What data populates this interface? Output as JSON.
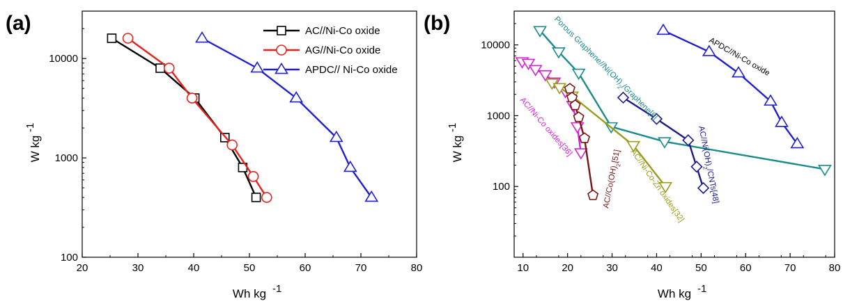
{
  "chart_data": [
    {
      "panel_label": "(a)",
      "type": "line",
      "xlabel": "Wh kg",
      "xlabel_sup": "-1",
      "ylabel": "W kg",
      "ylabel_sup": "-1",
      "xlim": [
        20,
        80
      ],
      "ylim": [
        100,
        30000
      ],
      "y_scale": "log",
      "xticks": [
        20,
        30,
        40,
        50,
        60,
        70,
        80
      ],
      "yticks": [
        100,
        1000,
        10000
      ],
      "legend_position": "top-right",
      "series": [
        {
          "name": "AC//Ni-Co oxide",
          "color": "#000000",
          "marker": "square",
          "x": [
            25.3,
            34.0,
            40.2,
            45.6,
            48.8,
            51.2
          ],
          "y": [
            16000,
            8000,
            4000,
            1600,
            800,
            400
          ]
        },
        {
          "name": "AG//Ni-Co oxide",
          "color": "#e8211d",
          "marker": "circle",
          "x": [
            28.2,
            35.6,
            39.7,
            46.9,
            50.7,
            53.1
          ],
          "y": [
            16000,
            8000,
            4000,
            1350,
            650,
            400
          ]
        },
        {
          "name": "APDC// Ni-Co oxide",
          "color": "#1f1fd1",
          "marker": "triangle-up",
          "x": [
            41.5,
            51.4,
            58.4,
            65.6,
            68.1,
            71.9
          ],
          "y": [
            16000,
            8000,
            4000,
            1600,
            800,
            400
          ]
        }
      ]
    },
    {
      "panel_label": "(b)",
      "type": "line",
      "xlabel": "Wh kg",
      "xlabel_sup": "-1",
      "ylabel": "W kg",
      "ylabel_sup": "-1",
      "xlim": [
        8,
        80
      ],
      "ylim": [
        10,
        30000
      ],
      "y_scale": "log",
      "xticks": [
        10,
        20,
        30,
        40,
        50,
        60,
        70,
        80
      ],
      "yticks": [
        100,
        1000,
        10000
      ],
      "series": [
        {
          "name": "APDC//Ni-Co oxide",
          "color": "#1f1fd1",
          "marker": "triangle-up",
          "x": [
            41.5,
            51.8,
            58.4,
            65.6,
            68.1,
            71.6
          ],
          "y": [
            16000,
            8000,
            4000,
            1600,
            800,
            400
          ],
          "label_text": "APDC//Ni-Co oxide",
          "label_color": "#000000"
        },
        {
          "name": "Porous Graphene//Ni(OH)2/Graphene[6]",
          "color": "#1a8a8a",
          "marker": "triangle-down",
          "x": [
            13.8,
            18.0,
            22.5,
            29.8,
            41.8,
            77.8
          ],
          "y": [
            16000,
            8000,
            4000,
            700,
            430,
            175
          ],
          "label_parts": [
            "Porous Graphene//Ni(OH)",
            "2",
            "/Graphene[6]"
          ],
          "label_color": "#1a8a8a"
        },
        {
          "name": "AC//Ni(OH)2/CNTs[48]",
          "color": "#1a1a8a",
          "marker": "diamond",
          "x": [
            32.5,
            40.0,
            47.1,
            49.0,
            50.5
          ],
          "y": [
            1800,
            900,
            450,
            190,
            95
          ],
          "label_parts": [
            "AC//Ni(OH)",
            "2",
            "/CNTs[48]"
          ],
          "label_color": "#1a1a8a"
        },
        {
          "name": "AC//Ni-Co oxides[36]",
          "color": "#d61fd6",
          "marker": "triangle-down",
          "x": [
            9.8,
            11.2,
            12.8,
            15.0,
            17.0,
            19.5,
            21.2,
            22.2,
            23.0
          ],
          "y": [
            5800,
            5500,
            4500,
            3800,
            3000,
            2200,
            1400,
            700,
            300
          ],
          "label_text": "AC//Ni-Co oxides[36]",
          "label_color": "#d61fd6"
        },
        {
          "name": "AC//Ni-Co-Zn oxides[32]",
          "color": "#9b9b1a",
          "marker": "triangle-down",
          "x": [
            16.5,
            18.2,
            21.0,
            34.8,
            42.0
          ],
          "y": [
            2900,
            2500,
            1900,
            380,
            100
          ],
          "label_text": "AC//Ni-Co-Zn oxides[32]",
          "label_color": "#9b9b1a"
        },
        {
          "name": "AC//Co(OH)2[51]",
          "color": "#7a1414",
          "marker": "pentagon",
          "x": [
            20.5,
            21.0,
            21.7,
            22.5,
            23.8,
            25.7
          ],
          "y": [
            2400,
            1800,
            1400,
            950,
            480,
            75
          ],
          "label_parts": [
            "AC//Co(OH)",
            "2",
            "[51]"
          ],
          "label_color": "#7a1414"
        }
      ]
    }
  ]
}
